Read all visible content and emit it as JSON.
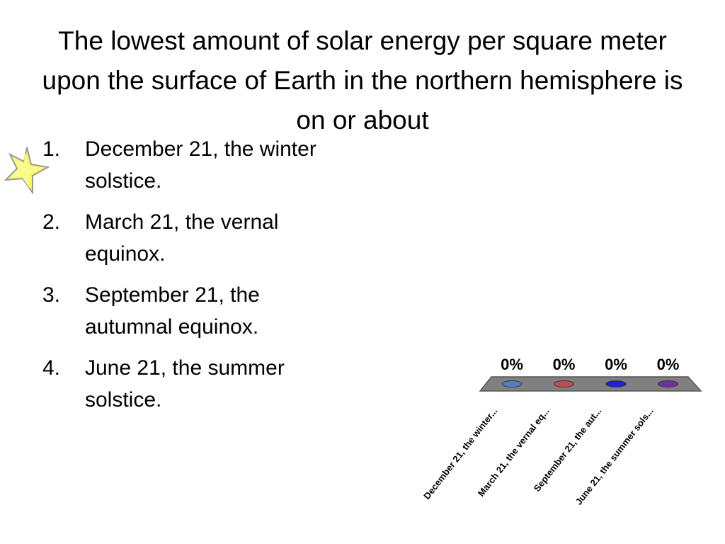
{
  "slide": {
    "title": "The lowest amount of solar energy per square meter upon the surface of Earth in the northern hemisphere is on or about"
  },
  "answers": [
    {
      "number": "1.",
      "text": "December 21, the winter solstice."
    },
    {
      "number": "2.",
      "text": "March 21, the vernal equinox."
    },
    {
      "number": "3.",
      "text": "September 21, the autumnal equinox."
    },
    {
      "number": "4.",
      "text": "June 21, the summer solstice."
    }
  ],
  "correct_marker": {
    "icon": "star-icon",
    "answer_index": 0,
    "color": "#f5f542"
  },
  "chart_data": {
    "type": "bar",
    "categories": [
      "December 21, the winter...",
      "March 21, the vernal eq...",
      "September 21, the aut...",
      "June 21, the summer sols..."
    ],
    "values": [
      0,
      0,
      0,
      0
    ],
    "data_labels": [
      "0%",
      "0%",
      "0%",
      "0%"
    ],
    "colors": [
      "#4f81bd",
      "#c0504d",
      "#1f1fd6",
      "#7030a0"
    ],
    "base_color": "#808080",
    "ylim": [
      0,
      100
    ],
    "title": "",
    "xlabel": "",
    "ylabel": ""
  }
}
